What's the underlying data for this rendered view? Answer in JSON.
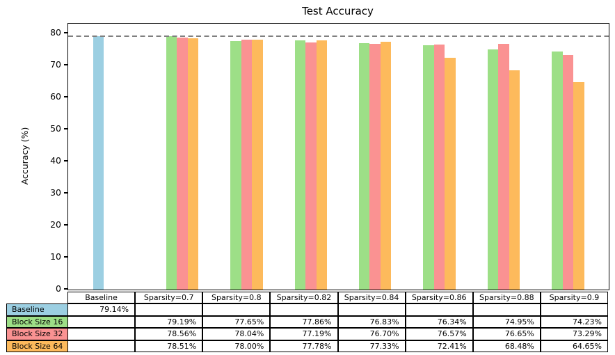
{
  "chart_data": {
    "type": "bar",
    "title": "Test Accuracy",
    "ylabel": "Accuracy (%)",
    "xlabel": "",
    "ylim": [
      0,
      83
    ],
    "yticks": [
      0,
      10,
      20,
      30,
      40,
      50,
      60,
      70,
      80
    ],
    "grid": false,
    "legend_position": "table-below",
    "reference_line": {
      "value": 79.14,
      "style": "dashed",
      "color": "#7f7f7f"
    },
    "categories": [
      "Baseline",
      "Sparsity=0.7",
      "Sparsity=0.8",
      "Sparsity=0.82",
      "Sparsity=0.84",
      "Sparsity=0.86",
      "Sparsity=0.88",
      "Sparsity=0.9"
    ],
    "series": [
      {
        "name": "Baseline",
        "color": "#9CCFE2",
        "values": [
          79.14,
          null,
          null,
          null,
          null,
          null,
          null,
          null
        ]
      },
      {
        "name": "Block Size 16",
        "color": "#9DDF87",
        "values": [
          null,
          79.19,
          77.65,
          77.86,
          76.83,
          76.34,
          74.95,
          74.23
        ]
      },
      {
        "name": "Block Size 32",
        "color": "#FA9292",
        "values": [
          null,
          78.56,
          78.04,
          77.19,
          76.7,
          76.57,
          76.65,
          73.29
        ]
      },
      {
        "name": "Block Size 64",
        "color": "#FDBA5C",
        "values": [
          null,
          78.51,
          78.0,
          77.78,
          77.33,
          72.41,
          68.48,
          64.65
        ]
      }
    ]
  },
  "table": {
    "columns": [
      "Baseline",
      "Sparsity=0.7",
      "Sparsity=0.8",
      "Sparsity=0.82",
      "Sparsity=0.84",
      "Sparsity=0.86",
      "Sparsity=0.88",
      "Sparsity=0.9"
    ],
    "rows": [
      {
        "label": "Baseline",
        "color": "#9CCFE2",
        "cells": [
          "79.14%",
          "",
          "",
          "",
          "",
          "",
          "",
          ""
        ]
      },
      {
        "label": "Block Size 16",
        "color": "#9DDF87",
        "cells": [
          "",
          "79.19%",
          "77.65%",
          "77.86%",
          "76.83%",
          "76.34%",
          "74.95%",
          "74.23%"
        ]
      },
      {
        "label": "Block Size 32",
        "color": "#FA9292",
        "cells": [
          "",
          "78.56%",
          "78.04%",
          "77.19%",
          "76.70%",
          "76.57%",
          "76.65%",
          "73.29%"
        ]
      },
      {
        "label": "Block Size 64",
        "color": "#FDBA5C",
        "cells": [
          "",
          "78.51%",
          "78.00%",
          "77.78%",
          "77.33%",
          "72.41%",
          "68.48%",
          "64.65%"
        ]
      }
    ]
  }
}
